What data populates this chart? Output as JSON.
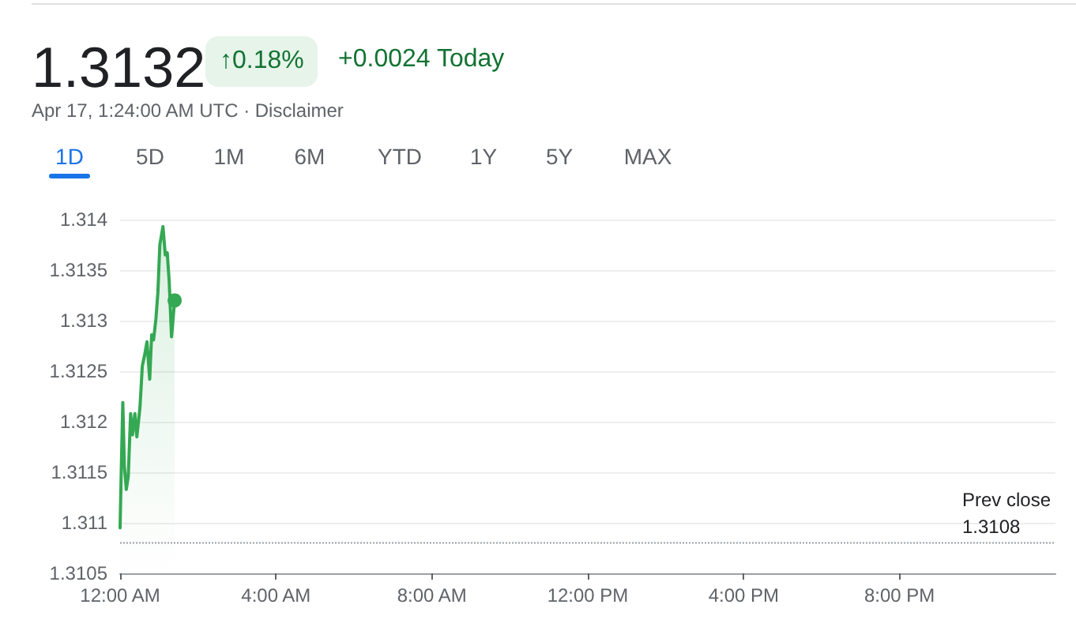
{
  "chart_data": {
    "type": "area",
    "title": "1.3132",
    "subtitle": "Apr 17, 1:24:00 AM UTC · Disclaimer",
    "annotations": [
      "↑0.18%",
      "+0.0024 Today",
      "1D",
      "5D",
      "1M",
      "6M",
      "YTD",
      "1Y",
      "5Y",
      "MAX"
    ],
    "x": [
      0,
      0.03,
      0.07,
      0.11,
      0.16,
      0.21,
      0.27,
      0.32,
      0.38,
      0.43,
      0.51,
      0.57,
      0.63,
      0.69,
      0.76,
      0.81,
      0.86,
      0.92,
      0.97,
      1.02,
      1.1,
      1.16,
      1.21,
      1.26,
      1.32,
      1.4
    ],
    "series": [
      {
        "color": "#34a853",
        "values": [
          1.31095,
          1.31151,
          1.31219,
          1.31156,
          1.31133,
          1.31146,
          1.31208,
          1.31187,
          1.31208,
          1.31185,
          1.31214,
          1.31255,
          1.31266,
          1.31279,
          1.31242,
          1.31286,
          1.31281,
          1.31302,
          1.31328,
          1.31375,
          1.31393,
          1.31365,
          1.31367,
          1.31339,
          1.31284,
          1.3132
        ]
      }
    ],
    "xlim": [
      0,
      24
    ],
    "xticks": [
      {
        "value": 0,
        "label": "12:00 AM"
      },
      {
        "value": 4,
        "label": "4:00 AM"
      },
      {
        "value": 8,
        "label": "8:00 AM"
      },
      {
        "value": 12,
        "label": "12:00 PM"
      },
      {
        "value": 16,
        "label": "4:00 PM"
      },
      {
        "value": 20,
        "label": "8:00 PM"
      }
    ],
    "ylim": [
      1.3105,
      1.314
    ],
    "yticks": [
      1.3105,
      1.311,
      1.3115,
      1.312,
      1.3125,
      1.313,
      1.3135,
      1.314
    ],
    "ref_lines": [
      {
        "axis": "y",
        "value": 1.3108,
        "label": "Prev close\n1.3108",
        "color": "#9aa0a6",
        "line_style": "dotted"
      }
    ],
    "grid": "y",
    "marker": "none",
    "line_style": "solid"
  }
}
